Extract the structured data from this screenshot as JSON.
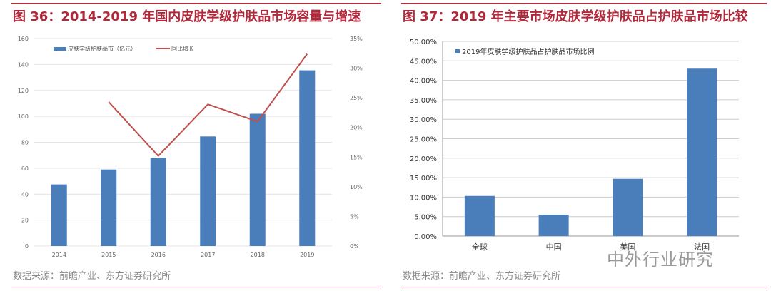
{
  "chart_data": [
    {
      "type": "bar+line",
      "title": "图 36：2014-2019 年国内皮肤学级护肤品市场容量与增速",
      "categories": [
        "2014",
        "2015",
        "2016",
        "2017",
        "2018",
        "2019"
      ],
      "series": [
        {
          "name": "皮肤学级护肤品市（亿元）",
          "type": "bar",
          "axis": "left",
          "values": [
            47.5,
            59,
            68,
            84.5,
            102,
            135.5
          ],
          "color": "#4a7ebb"
        },
        {
          "name": "同比增长",
          "type": "line",
          "axis": "right",
          "values": [
            null,
            24.3,
            15.2,
            23.9,
            21.0,
            32.4
          ],
          "color": "#c0504d"
        }
      ],
      "y_left": {
        "range": [
          0,
          160
        ],
        "ticks": [
          "0",
          "20",
          "40",
          "60",
          "80",
          "100",
          "120",
          "140",
          "160"
        ]
      },
      "y_right": {
        "range": [
          0,
          35
        ],
        "ticks": [
          "0%",
          "5%",
          "10%",
          "15%",
          "20%",
          "25%",
          "30%",
          "35%"
        ]
      },
      "grid": true,
      "legend": "top-left",
      "source": "数据来源：前瞻产业、东方证券研究所"
    },
    {
      "type": "bar",
      "title": "图 37：2019 年主要市场皮肤学级护肤品占护肤品市场比较",
      "categories": [
        "全球",
        "中国",
        "美国",
        "法国"
      ],
      "series": [
        {
          "name": "2019年皮肤学级护肤品占护肤品市场比例",
          "values": [
            10.3,
            5.5,
            14.7,
            43.0
          ],
          "color": "#4a7ebb"
        }
      ],
      "y": {
        "range": [
          0,
          50
        ],
        "ticks": [
          "0.00%",
          "5.00%",
          "10.00%",
          "15.00%",
          "20.00%",
          "25.00%",
          "30.00%",
          "35.00%",
          "40.00%",
          "45.00%",
          "50.00%"
        ]
      },
      "grid": true,
      "legend": "top-left",
      "source": "数据来源：前瞻产业、东方证券研究所"
    }
  ],
  "watermark": "中外行业研究"
}
